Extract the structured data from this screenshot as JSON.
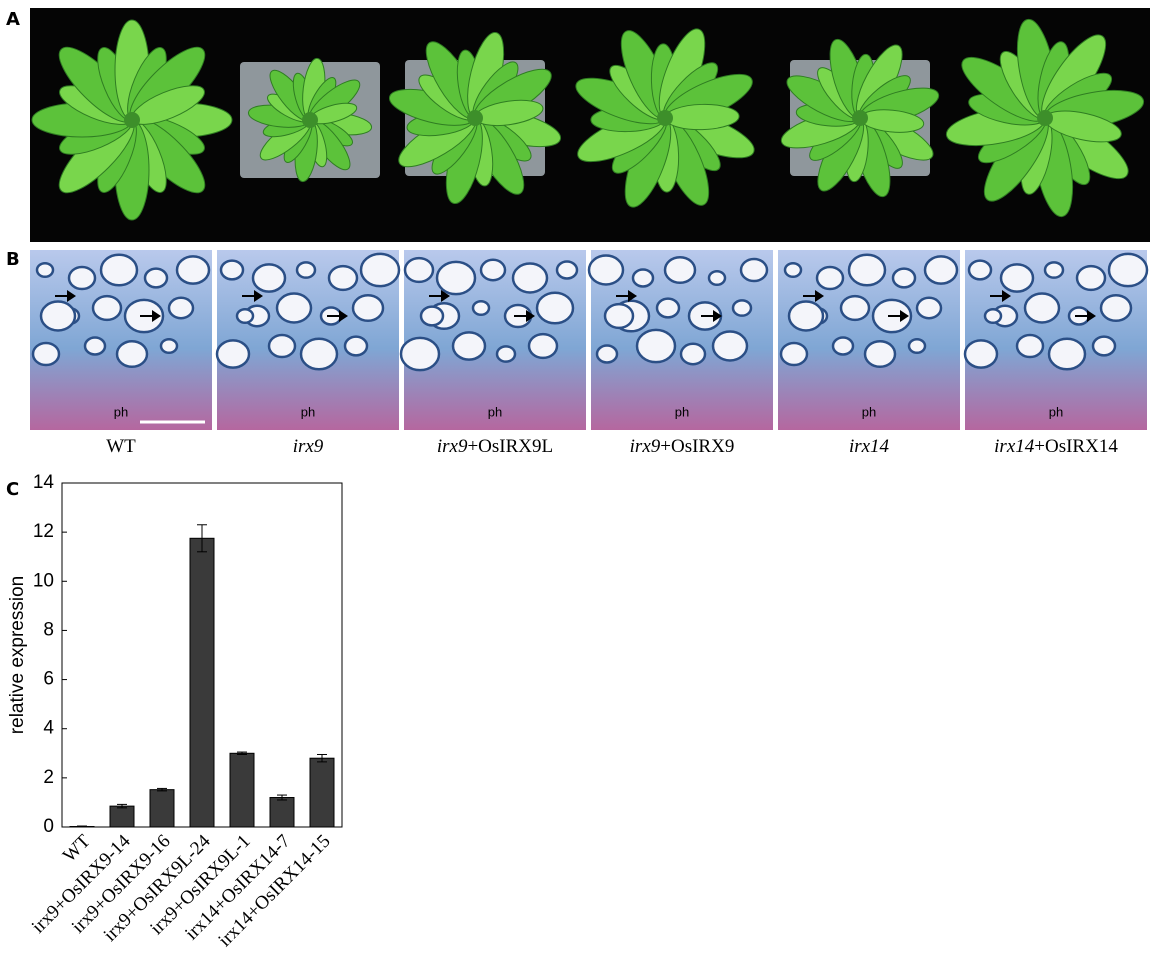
{
  "panel_labels": [
    "A",
    "B",
    "C"
  ],
  "micrograph_marker": "ph",
  "panel_b_labels": [
    [
      "WT"
    ],
    [
      "irx9"
    ],
    [
      "irx9",
      "+OsIRX9L"
    ],
    [
      "irx9",
      "+OsIRX9"
    ],
    [
      "irx14"
    ],
    [
      "irx14",
      "+OsIRX14"
    ]
  ],
  "chart_data": {
    "type": "bar",
    "y_label": "relative expression",
    "categories": [
      "WT",
      "irx9+OsIRX9-14",
      "irx9+OsIRX9-16",
      "irx9+OsIRX9L-24",
      "irx9+OsIRX9L-1",
      "irx14+OsIRX14-7",
      "irx14+OsIRX14-15"
    ],
    "values": [
      0.02,
      0.85,
      1.52,
      11.75,
      3.0,
      1.2,
      2.8
    ],
    "errors": [
      0.02,
      0.07,
      0.05,
      0.55,
      0.05,
      0.1,
      0.15
    ],
    "color": "#3a3a3a",
    "ylim": [
      0,
      14
    ],
    "yticks": [
      0,
      2,
      4,
      6,
      8,
      10,
      12,
      14
    ]
  }
}
